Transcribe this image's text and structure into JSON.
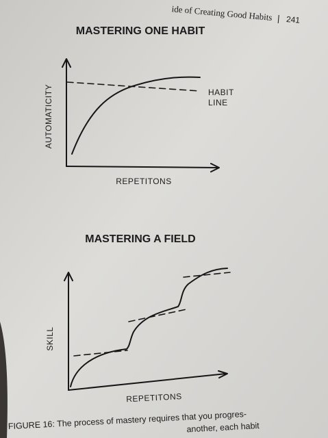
{
  "header": {
    "running_title": "ide of Creating Good Habits",
    "page_number": "241"
  },
  "figure_top": {
    "title": "MASTERING ONE HABIT",
    "y_axis_label": "AUTOMATICITY",
    "x_axis_label": "REPETITONS",
    "line_label": [
      "HABIT",
      "LINE"
    ]
  },
  "figure_bottom": {
    "title": "MASTERING A FIELD",
    "y_axis_label": "SKILL",
    "x_axis_label": "REPETITONS"
  },
  "caption": {
    "lines": [
      "FIGURE 16: The process of mastery requires that you progres-",
      "another, each habit"
    ]
  }
}
